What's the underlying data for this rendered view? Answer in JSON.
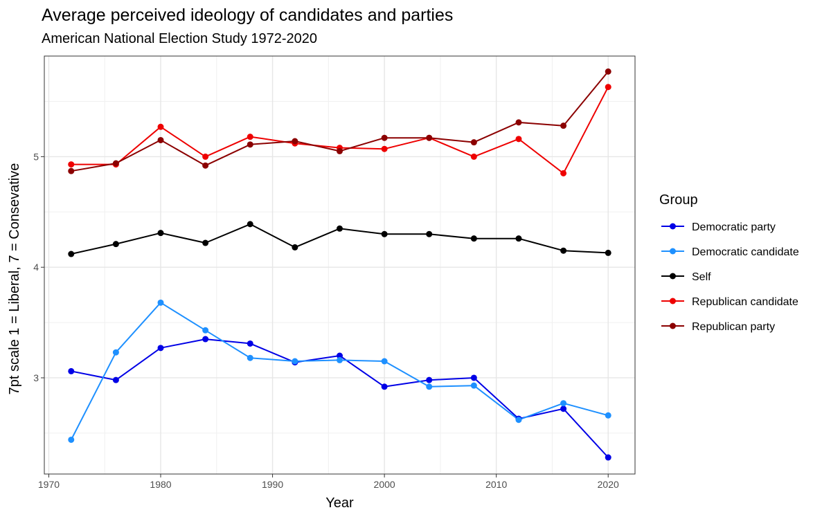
{
  "title": "Average perceived ideology of candidates and parties",
  "subtitle": "American National Election Study 1972-2020",
  "chart_data": {
    "type": "line",
    "xlabel": "Year",
    "ylabel": "7pt scale 1 = Liberal, 7 = Consevative",
    "xlim": [
      1969.6,
      2022.4
    ],
    "ylim": [
      2.13,
      5.91
    ],
    "x_ticks": [
      1970,
      1980,
      1990,
      2000,
      2010,
      2020
    ],
    "y_ticks": [
      3,
      4,
      5
    ],
    "grid": true,
    "legend_title": "Group",
    "legend_position": "right",
    "x": [
      1972,
      1976,
      1980,
      1984,
      1988,
      1992,
      1996,
      2000,
      2004,
      2008,
      2012,
      2016,
      2020
    ],
    "series": [
      {
        "name": "Democratic party",
        "color": "#0000E6",
        "values": [
          3.06,
          2.98,
          3.27,
          3.35,
          3.31,
          3.14,
          3.2,
          2.92,
          2.98,
          3.0,
          2.63,
          2.72,
          2.28
        ]
      },
      {
        "name": "Democratic candidate",
        "color": "#1E90FF",
        "values": [
          2.44,
          3.23,
          3.68,
          3.43,
          3.18,
          3.15,
          3.16,
          3.15,
          2.92,
          2.93,
          2.62,
          2.77,
          2.66
        ]
      },
      {
        "name": "Self",
        "color": "#000000",
        "values": [
          4.12,
          4.21,
          4.31,
          4.22,
          4.39,
          4.18,
          4.35,
          4.3,
          4.3,
          4.26,
          4.26,
          4.15,
          4.13
        ]
      },
      {
        "name": "Republican candidate",
        "color": "#EE0000",
        "values": [
          4.93,
          4.93,
          5.27,
          5.0,
          5.18,
          5.12,
          5.08,
          5.07,
          5.17,
          5.0,
          5.16,
          4.85,
          5.63
        ]
      },
      {
        "name": "Republican party",
        "color": "#8B0000",
        "values": [
          4.87,
          4.94,
          5.15,
          4.92,
          5.11,
          5.14,
          5.05,
          5.17,
          5.17,
          5.13,
          5.31,
          5.28,
          5.77
        ]
      }
    ]
  }
}
